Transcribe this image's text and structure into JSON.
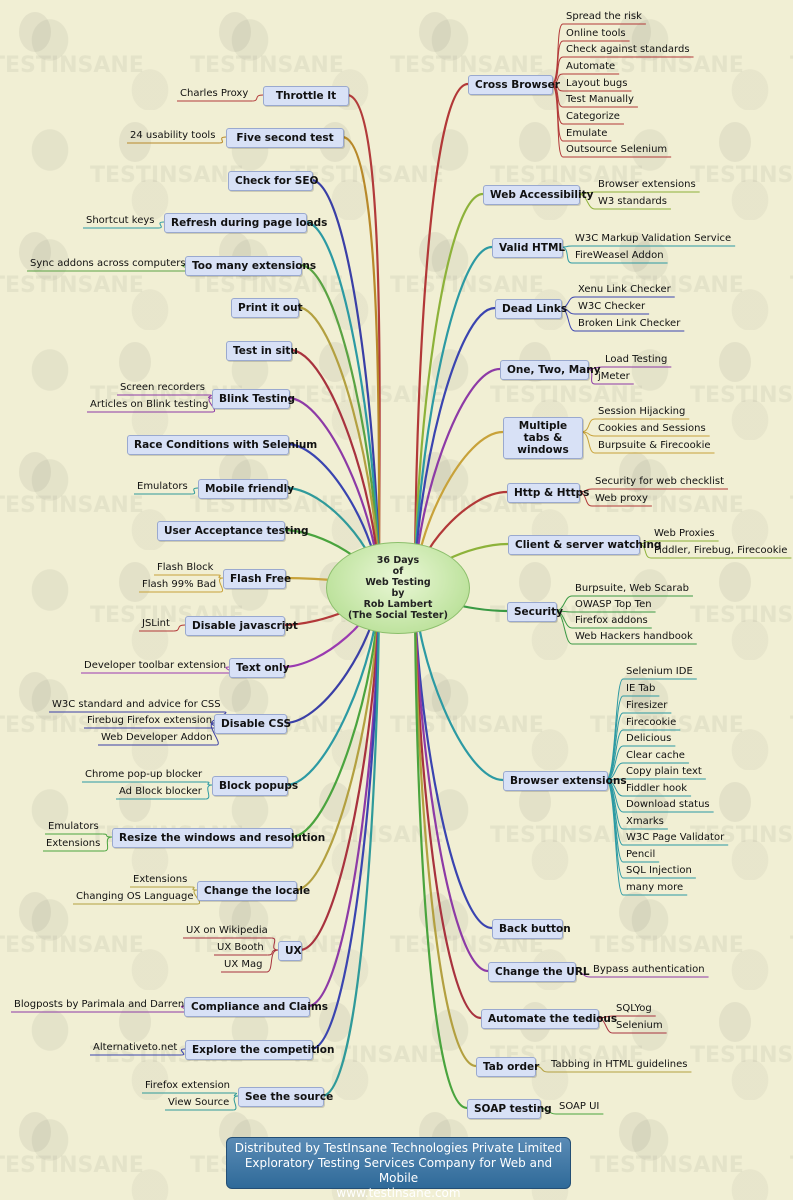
{
  "center": {
    "lines": [
      "36 Days",
      "of",
      "Web Testing",
      "by",
      "Rob Lambert",
      "(The Social Tester)"
    ]
  },
  "footer": {
    "line1": "Distributed by TestInsane Technologies Private Limited",
    "line2": "Exploratory Testing Services Company for Web and Mobile",
    "line3": "www.testinsane.com"
  },
  "watermark": {
    "text": "TESTINSANE"
  },
  "branches": [
    {
      "name": "throttle-it",
      "label": "Throttle It",
      "color": "#b23b3b",
      "leaves": [
        "Charles Proxy"
      ]
    },
    {
      "name": "five-second-test",
      "label": "Five second test",
      "color": "#b8892a",
      "leaves": [
        "24 usability tools"
      ]
    },
    {
      "name": "check-for-seo",
      "label": "Check for SEO",
      "color": "#3a3fa6",
      "leaves": []
    },
    {
      "name": "refresh-during-page-loads",
      "label": "Refresh during page loads",
      "color": "#2c9aa3",
      "leaves": [
        "Shortcut keys"
      ]
    },
    {
      "name": "too-many-extensions",
      "label": "Too many extensions",
      "color": "#5aa343",
      "leaves": [
        "Sync addons across computers"
      ]
    },
    {
      "name": "print-it-out",
      "label": "Print it out",
      "color": "#b3a040",
      "leaves": []
    },
    {
      "name": "test-in-situ",
      "label": "Test in situ",
      "color": "#a8323e",
      "leaves": []
    },
    {
      "name": "blink-testing",
      "label": "Blink Testing",
      "color": "#8d3aa6",
      "leaves": [
        "Screen recorders",
        "Articles on Blink testing"
      ]
    },
    {
      "name": "race-conditions",
      "label": "Race Conditions with Selenium",
      "color": "#3a44b0",
      "leaves": []
    },
    {
      "name": "mobile-friendly",
      "label": "Mobile friendly",
      "color": "#2f9a9a",
      "leaves": [
        "Emulators"
      ]
    },
    {
      "name": "user-acceptance-testing",
      "label": "User Acceptance testing",
      "color": "#4aa43e",
      "leaves": []
    },
    {
      "name": "flash-free",
      "label": "Flash Free",
      "color": "#c8a23a",
      "leaves": [
        "Flash Block",
        "Flash 99% Bad"
      ]
    },
    {
      "name": "disable-javascript",
      "label": "Disable javascript",
      "color": "#b23838",
      "leaves": [
        "JSLint"
      ]
    },
    {
      "name": "text-only",
      "label": "Text only",
      "color": "#9a3ab0",
      "leaves": [
        "Developer toolbar extension"
      ]
    },
    {
      "name": "disable-css",
      "label": "Disable CSS",
      "color": "#3a3fa6",
      "leaves": [
        "W3C standard and advice for CSS",
        "Firebug Firefox extension",
        "Web Developer Addon"
      ]
    },
    {
      "name": "block-popups",
      "label": "Block popups",
      "color": "#2c9aa3",
      "leaves": [
        "Chrome pop-up blocker",
        "Ad Block blocker"
      ]
    },
    {
      "name": "resize-windows",
      "label": "Resize the windows and resolution",
      "color": "#4aa43e",
      "leaves": [
        "Emulators",
        "Extensions"
      ]
    },
    {
      "name": "change-the-locale",
      "label": "Change the locale",
      "color": "#b3a040",
      "leaves": [
        "Extensions",
        "Changing OS Language"
      ]
    },
    {
      "name": "ux",
      "label": "UX",
      "color": "#a8323e",
      "leaves": [
        "UX on Wikipedia",
        "UX Booth",
        "UX Mag"
      ]
    },
    {
      "name": "compliance-and-claims",
      "label": "Compliance and Claims",
      "color": "#8d3aa6",
      "leaves": [
        "Blogposts by Parimala and Darren"
      ]
    },
    {
      "name": "explore-the-competition",
      "label": "Explore the competition",
      "color": "#3a44b0",
      "leaves": [
        "Alternativeto.net"
      ]
    },
    {
      "name": "see-the-source",
      "label": "See the source",
      "color": "#2f9a9a",
      "leaves": [
        "Firefox extension",
        "View Source"
      ]
    },
    {
      "name": "cross-browser",
      "label": "Cross Browser",
      "color": "#b23838",
      "leaves": [
        "Spread the risk",
        "Online tools",
        "Check against standards",
        "Automate",
        "Layout bugs",
        "Test Manually",
        "Categorize",
        "Emulate",
        "Outsource Selenium"
      ]
    },
    {
      "name": "web-accessibility",
      "label": "Web Accessibility",
      "color": "#8db23a",
      "leaves": [
        "Browser extensions",
        "W3 standards"
      ]
    },
    {
      "name": "valid-html",
      "label": "Valid HTML",
      "color": "#2c9aa3",
      "leaves": [
        "W3C Markup Validation Service",
        "FireWeasel Addon"
      ]
    },
    {
      "name": "dead-links",
      "label": "Dead Links",
      "color": "#3a44b0",
      "leaves": [
        "Xenu Link Checker",
        "W3C Checker",
        "Broken Link Checker"
      ]
    },
    {
      "name": "one-two-many",
      "label": "One, Two, Many",
      "color": "#8d3aa6",
      "leaves": [
        "Load Testing",
        "jMeter"
      ]
    },
    {
      "name": "multiple-tabs",
      "label": "Multiple tabs & windows",
      "color": "#c8a23a",
      "leaves": [
        "Session Hijacking",
        "Cookies and Sessions",
        "Burpsuite & Firecookie"
      ]
    },
    {
      "name": "http-https",
      "label": "Http & Https",
      "color": "#b23838",
      "leaves": [
        "Security for web checklist",
        "Web proxy"
      ]
    },
    {
      "name": "client-server-watching",
      "label": "Client & server watching",
      "color": "#8db23a",
      "leaves": [
        "Web Proxies",
        "Fiddler, Firebug, Firecookie"
      ]
    },
    {
      "name": "security",
      "label": "Security",
      "color": "#3a9a44",
      "leaves": [
        "Burpsuite, Web Scarab",
        "OWASP Top Ten",
        "Firefox addons",
        "Web Hackers handbook"
      ]
    },
    {
      "name": "browser-extensions",
      "label": "Browser extensions",
      "color": "#2c9aa3",
      "leaves": [
        "Selenium IDE",
        "IE Tab",
        "Firesizer",
        "Firecookie",
        "Delicious",
        "Clear cache",
        "Copy plain text",
        "Fiddler hook",
        "Download status",
        "Xmarks",
        "W3C Page Validator",
        "Pencil",
        "SQL Injection",
        "many more"
      ]
    },
    {
      "name": "back-button",
      "label": "Back button",
      "color": "#3a44b0",
      "leaves": []
    },
    {
      "name": "change-the-url",
      "label": "Change the URL",
      "color": "#8d3aa6",
      "leaves": [
        "Bypass authentication"
      ]
    },
    {
      "name": "automate-the-tedious",
      "label": "Automate the tedious",
      "color": "#a8323e",
      "leaves": [
        "SQLYog",
        "Selenium"
      ]
    },
    {
      "name": "tab-order",
      "label": "Tab order",
      "color": "#b3a040",
      "leaves": [
        "Tabbing in HTML guidelines"
      ]
    },
    {
      "name": "soap-testing",
      "label": "SOAP testing",
      "color": "#4aa43e",
      "leaves": [
        "SOAP UI"
      ]
    }
  ]
}
